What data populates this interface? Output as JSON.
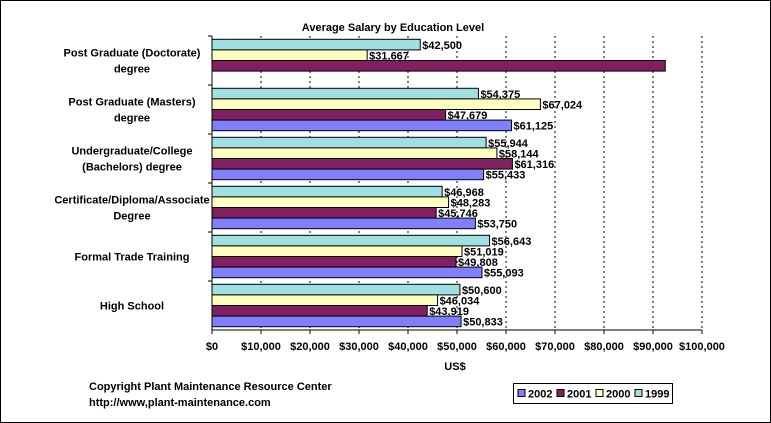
{
  "chart_data": {
    "type": "bar",
    "orientation": "horizontal",
    "title": "Average Salary by Education Level",
    "xlabel": "US$",
    "ylabel": "",
    "xlim": [
      0,
      100000
    ],
    "x_ticks": [
      "$0",
      "$10,000",
      "$20,000",
      "$30,000",
      "$40,000",
      "$50,000",
      "$60,000",
      "$70,000",
      "$80,000",
      "$90,000",
      "$100,000"
    ],
    "grid": "vertical dotted",
    "legend_placement": "bottom-right",
    "categories": [
      [
        "Post Graduate (Doctorate)",
        "degree"
      ],
      [
        "Post Graduate (Masters)",
        "degree"
      ],
      [
        "Undergraduate/College",
        "(Bachelors) degree"
      ],
      [
        "Certificate/Diploma/Associate",
        "Degree"
      ],
      [
        "Formal Trade Training"
      ],
      [
        "High School"
      ]
    ],
    "series": [
      {
        "name": "1999",
        "color": "#a0e0e0",
        "values": [
          42500,
          54375,
          55944,
          46968,
          56643,
          50600
        ],
        "labels": [
          "$42,500",
          "$54,375",
          "$55,944",
          "$46,968",
          "$56,643",
          "$50,600"
        ]
      },
      {
        "name": "2000",
        "color": "#ffffc0",
        "values": [
          31667,
          67024,
          58144,
          48283,
          51019,
          46034
        ],
        "labels": [
          "$31,667",
          "$67,024",
          "$58,144",
          "$48,283",
          "$51,019",
          "$46,034"
        ]
      },
      {
        "name": "2001",
        "color": "#802060",
        "values": [
          92500,
          47679,
          61316,
          45746,
          49808,
          43919
        ],
        "labels": [
          "$92,500",
          "$47,679",
          "$61,316",
          "$45,746",
          "$49,808",
          "$43,919"
        ]
      },
      {
        "name": "2002",
        "color": "#8080ff",
        "values": [
          null,
          61125,
          55433,
          53750,
          55093,
          50833
        ],
        "labels": [
          null,
          "$61,125",
          "$55,433",
          "$53,750",
          "$55,093",
          "$50,833"
        ]
      }
    ],
    "legend_order": [
      "2002",
      "2001",
      "2000",
      "1999"
    ]
  },
  "footer": {
    "copyright": "Copyright Plant Maintenance Resource Center",
    "url": "http://www,plant-maintenance.com"
  }
}
